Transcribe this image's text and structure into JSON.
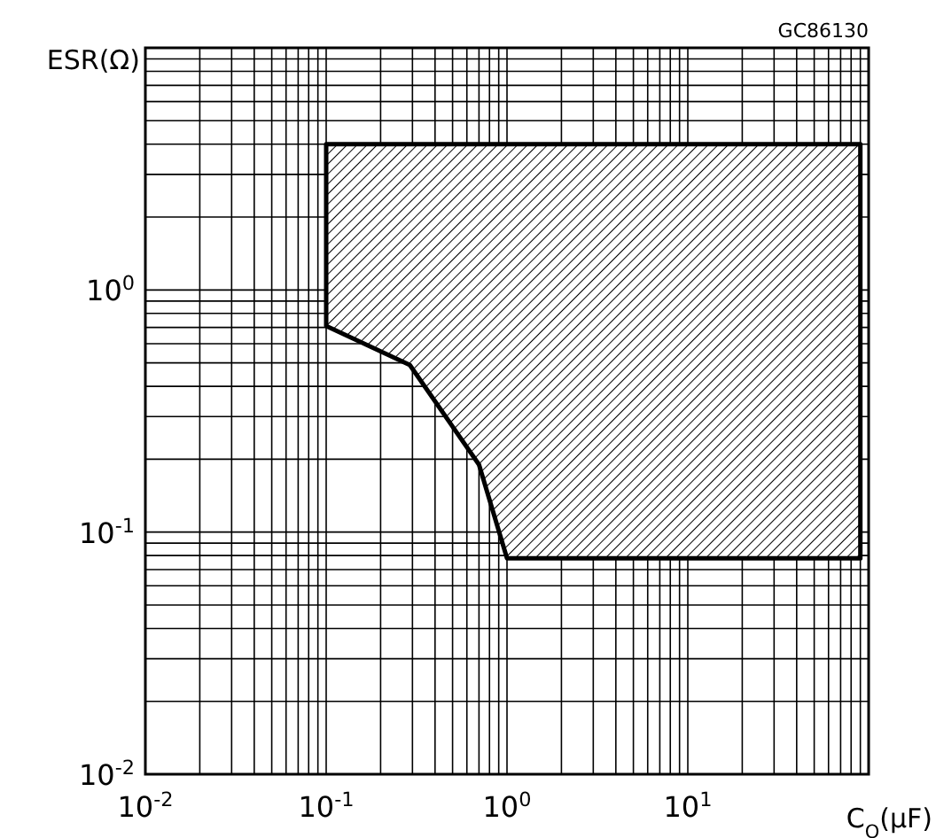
{
  "chart_data": {
    "type": "area",
    "xlabel": "C$_{O}$(μF)",
    "ylabel": "ESR(Ω)",
    "annotations": [
      "GC86130"
    ],
    "log": "xy",
    "grid": true,
    "xlim": [
      0.01,
      100
    ],
    "ylim": [
      0.01,
      10
    ],
    "xticks": [
      {
        "value": 0.01,
        "label": "10$^{-2}$"
      },
      {
        "value": 0.02,
        "label": null
      },
      {
        "value": 0.03,
        "label": null
      },
      {
        "value": 0.04,
        "label": null
      },
      {
        "value": 0.05,
        "label": null
      },
      {
        "value": 0.06,
        "label": null
      },
      {
        "value": 0.07,
        "label": null
      },
      {
        "value": 0.08,
        "label": null
      },
      {
        "value": 0.09,
        "label": null
      },
      {
        "value": 0.1,
        "label": "10$^{-1}$"
      },
      {
        "value": 0.2,
        "label": null
      },
      {
        "value": 0.3,
        "label": null
      },
      {
        "value": 0.4,
        "label": null
      },
      {
        "value": 0.5,
        "label": null
      },
      {
        "value": 0.6,
        "label": null
      },
      {
        "value": 0.7,
        "label": null
      },
      {
        "value": 0.8,
        "label": null
      },
      {
        "value": 0.9,
        "label": null
      },
      {
        "value": 1,
        "label": "10$^{0}$"
      },
      {
        "value": 2,
        "label": null
      },
      {
        "value": 3,
        "label": null
      },
      {
        "value": 4,
        "label": null
      },
      {
        "value": 5,
        "label": null
      },
      {
        "value": 6,
        "label": null
      },
      {
        "value": 7,
        "label": null
      },
      {
        "value": 8,
        "label": null
      },
      {
        "value": 9,
        "label": null
      },
      {
        "value": 10,
        "label": "10$^{1}$"
      },
      {
        "value": 20,
        "label": null
      },
      {
        "value": 30,
        "label": null
      },
      {
        "value": 40,
        "label": null
      },
      {
        "value": 50,
        "label": null
      },
      {
        "value": 60,
        "label": null
      },
      {
        "value": 70,
        "label": null
      },
      {
        "value": 80,
        "label": null
      },
      {
        "value": 90,
        "label": null
      },
      {
        "value": 100,
        "label": null
      }
    ],
    "yticks": [
      {
        "value": 0.01,
        "label": "10$^{-2}$"
      },
      {
        "value": 0.02,
        "label": null
      },
      {
        "value": 0.03,
        "label": null
      },
      {
        "value": 0.04,
        "label": null
      },
      {
        "value": 0.05,
        "label": null
      },
      {
        "value": 0.06,
        "label": null
      },
      {
        "value": 0.07,
        "label": null
      },
      {
        "value": 0.08,
        "label": null
      },
      {
        "value": 0.09,
        "label": null
      },
      {
        "value": 0.1,
        "label": "10$^{-1}$"
      },
      {
        "value": 0.2,
        "label": null
      },
      {
        "value": 0.3,
        "label": null
      },
      {
        "value": 0.4,
        "label": null
      },
      {
        "value": 0.5,
        "label": null
      },
      {
        "value": 0.6,
        "label": null
      },
      {
        "value": 0.7,
        "label": null
      },
      {
        "value": 0.8,
        "label": null
      },
      {
        "value": 0.9,
        "label": null
      },
      {
        "value": 1,
        "label": "10$^{0}$"
      },
      {
        "value": 2,
        "label": null
      },
      {
        "value": 3,
        "label": null
      },
      {
        "value": 4,
        "label": null
      },
      {
        "value": 5,
        "label": null
      },
      {
        "value": 6,
        "label": null
      },
      {
        "value": 7,
        "label": null
      },
      {
        "value": 8,
        "label": null
      },
      {
        "value": 9,
        "label": null
      },
      {
        "value": 10,
        "label": null
      }
    ],
    "series": [
      {
        "color": "#000000",
        "x": [
          0.1,
          0.1,
          0.29,
          0.7,
          1,
          90,
          90,
          0.1
        ],
        "values": [
          4,
          0.71,
          0.49,
          0.19,
          0.078,
          0.078,
          4,
          4
        ]
      }
    ]
  }
}
